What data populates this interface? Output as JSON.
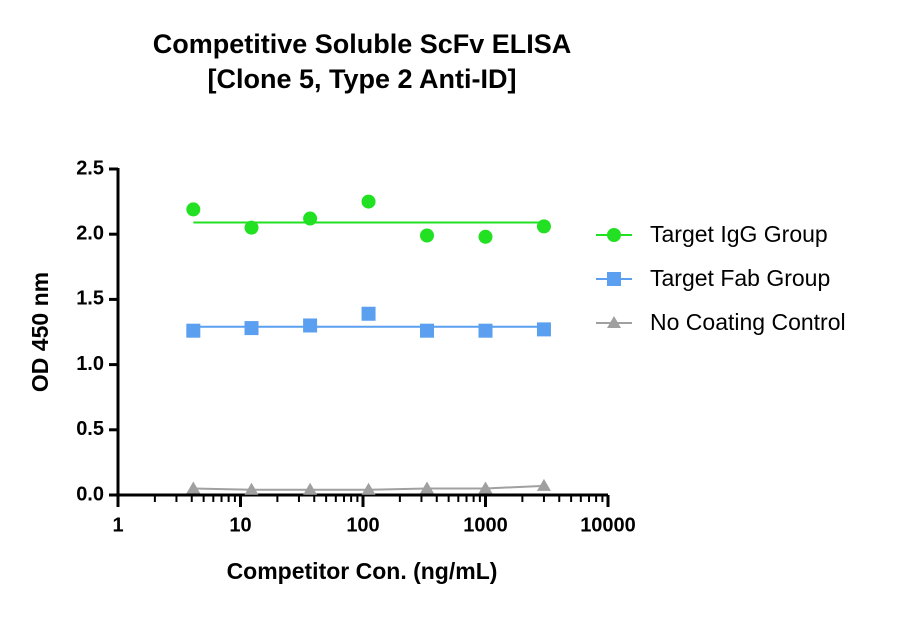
{
  "chart_data": {
    "type": "scatter",
    "title": [
      "Competitive Soluble ScFv ELISA",
      "[Clone 5, Type 2 Anti-ID]"
    ],
    "x_label": "Competitor Con. (ng/mL)",
    "y_label": "OD 450 nm",
    "x": [
      4.12,
      12.3,
      37,
      111,
      333,
      1000,
      3000
    ],
    "xscale": "log",
    "xlim": [
      1,
      10000
    ],
    "xticks": [
      1,
      10,
      100,
      1000,
      10000
    ],
    "ylim": [
      0,
      2.5
    ],
    "yticks": [
      {
        "value": 0,
        "label": "0.0"
      },
      {
        "value": 0.5,
        "label": "0.5"
      },
      {
        "value": 1,
        "label": "1.0"
      },
      {
        "value": 1.5,
        "label": "1.5"
      },
      {
        "value": 2,
        "label": "2.0"
      },
      {
        "value": 2.5,
        "label": "2.5"
      }
    ],
    "legend": "right",
    "series": [
      {
        "name": "Target IgG Group",
        "color": "#22e022",
        "marker": "circle",
        "line": "fit",
        "fit": 2.09,
        "values": [
          2.19,
          2.05,
          2.12,
          2.25,
          1.99,
          1.98,
          2.06
        ]
      },
      {
        "name": "Target Fab Group",
        "color": "#5a9ff0",
        "marker": "square",
        "line": "fit",
        "fit": 1.29,
        "values": [
          1.26,
          1.28,
          1.3,
          1.39,
          1.26,
          1.26,
          1.27
        ]
      },
      {
        "name": "No Coating Control",
        "color": "#a0a0a0",
        "marker": "triangle",
        "line": "connect",
        "values": [
          0.05,
          0.04,
          0.04,
          0.04,
          0.05,
          0.05,
          0.07
        ]
      }
    ]
  }
}
